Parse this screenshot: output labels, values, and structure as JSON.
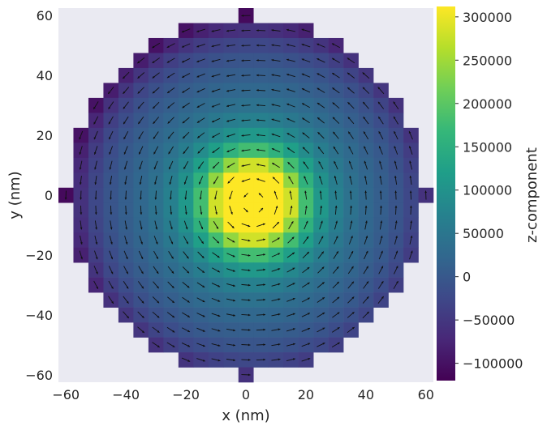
{
  "chart_data": {
    "type": "heatmap",
    "xlabel": "x (nm)",
    "ylabel": "y (nm)",
    "xlim": [
      -62.5,
      62.5
    ],
    "ylim": [
      -62.5,
      62.5
    ],
    "xticks": [
      -60,
      -40,
      -20,
      0,
      20,
      40,
      60
    ],
    "yticks": [
      -60,
      -40,
      -20,
      0,
      20,
      40,
      60
    ],
    "xtick_labels": [
      "−60",
      "−40",
      "−20",
      "0",
      "20",
      "40",
      "60"
    ],
    "ytick_labels": [
      "−60",
      "−40",
      "−20",
      "0",
      "20",
      "40",
      "60"
    ],
    "grid": false,
    "cell_size_nm": 5,
    "disk_radius_nm": 60,
    "field": "vortex",
    "core_center_nm": [
      2.5,
      -2.5
    ],
    "colorbar": {
      "label": "z-component",
      "min": -120000,
      "max": 312000,
      "ticks": [
        -100000,
        -50000,
        0,
        50000,
        100000,
        150000,
        200000,
        250000,
        300000
      ],
      "tick_labels": [
        "−100000",
        "−50000",
        "0",
        "50000",
        "100000",
        "150000",
        "200000",
        "250000",
        "300000"
      ],
      "colormap": "viridis"
    },
    "colors": {
      "axes_background": "#eaeaf2",
      "arrow": "#111111",
      "viridis": [
        "#440154",
        "#482878",
        "#3e4989",
        "#31688e",
        "#26828e",
        "#1f9e89",
        "#35b779",
        "#6ece58",
        "#b5de2b",
        "#fde725"
      ]
    }
  }
}
